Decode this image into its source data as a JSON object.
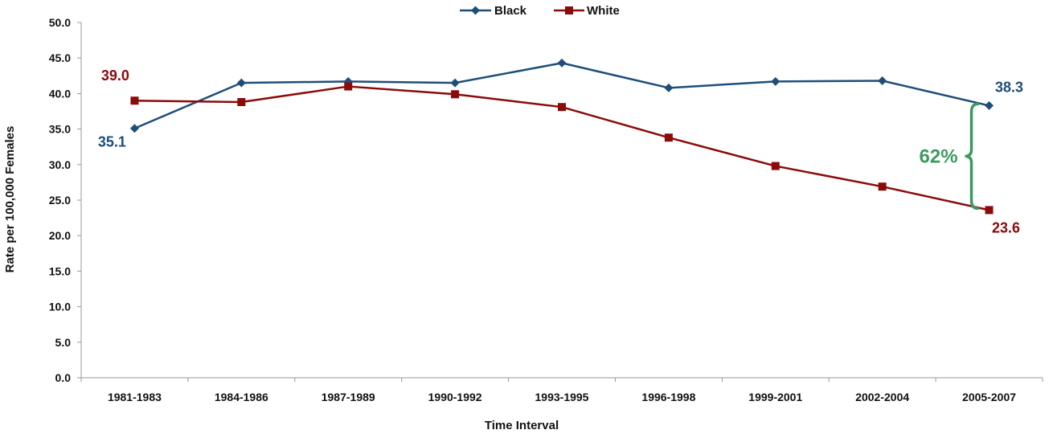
{
  "chart_data": {
    "type": "line",
    "xlabel": "Time Interval",
    "ylabel": "Rate per 100,000 Females",
    "ylim": [
      0,
      50
    ],
    "yticks": [
      "0.0",
      "5.0",
      "10.0",
      "15.0",
      "20.0",
      "25.0",
      "30.0",
      "35.0",
      "40.0",
      "45.0",
      "50.0"
    ],
    "categories": [
      "1981-1983",
      "1984-1986",
      "1987-1989",
      "1990-1992",
      "1993-1995",
      "1996-1998",
      "1999-2001",
      "2002-2004",
      "2005-2007"
    ],
    "series": [
      {
        "name": "Black",
        "color": "#1F4E79",
        "marker": "diamond",
        "values": [
          35.1,
          41.5,
          41.7,
          41.5,
          44.3,
          40.8,
          41.7,
          41.8,
          38.3
        ]
      },
      {
        "name": "White",
        "color": "#8B0A0A",
        "marker": "square",
        "values": [
          39.0,
          38.8,
          41.0,
          39.9,
          38.1,
          33.8,
          29.8,
          26.9,
          23.6
        ]
      }
    ],
    "legend": {
      "placement": "top-center"
    },
    "grid": false,
    "annotations": [
      {
        "text": "39.0",
        "series": "White",
        "point": "first",
        "color": "#8B0A0A"
      },
      {
        "text": "35.1",
        "series": "Black",
        "point": "first",
        "color": "#1F4E79"
      },
      {
        "text": "38.3",
        "series": "Black",
        "point": "last",
        "color": "#1F4E79"
      },
      {
        "text": "23.6",
        "series": "White",
        "point": "last",
        "color": "#8B0A0A"
      },
      {
        "text": "62%",
        "type": "gap-bracket",
        "color": "#3C9A5F"
      }
    ]
  }
}
